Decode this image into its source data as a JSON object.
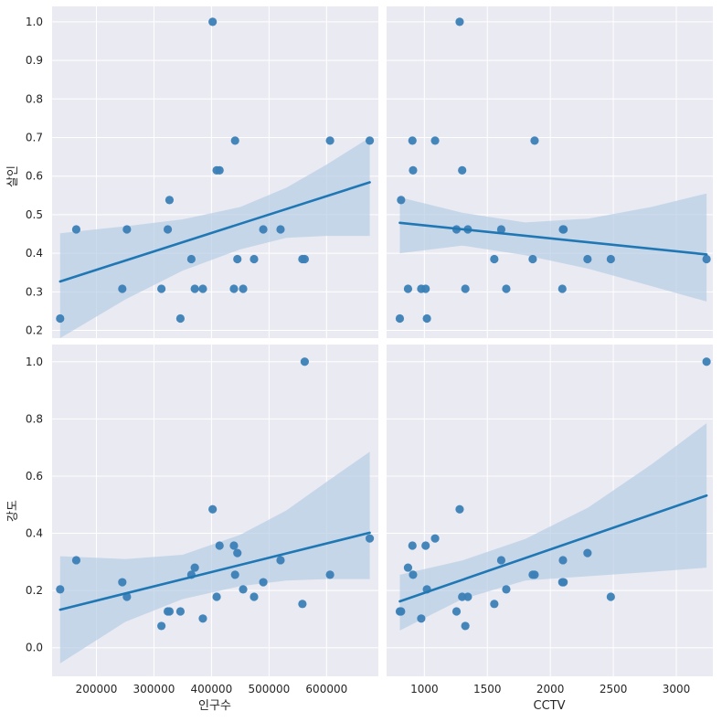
{
  "chart_data": {
    "type": "scatter",
    "layout": "2x2 pairplot with regression lines and confidence bands",
    "colors": {
      "background": "#eaeaf2",
      "grid": "#ffffff",
      "point": "#3b7fb6",
      "line": "#1f77b4",
      "band": "#b7cde5"
    },
    "x_variables": [
      {
        "label": "인구수",
        "lim": [
          123000,
          690000
        ],
        "ticks": [
          200000,
          300000,
          400000,
          500000,
          600000
        ]
      },
      {
        "label": "CCTV",
        "lim": [
          700,
          3290
        ],
        "ticks": [
          1000,
          1500,
          2000,
          2500,
          3000
        ]
      }
    ],
    "y_variables": [
      {
        "label": "살인",
        "lim": [
          0.18,
          1.04
        ],
        "ticks": [
          0.2,
          0.3,
          0.4,
          0.5,
          0.6,
          0.7,
          0.8,
          0.9,
          1.0
        ],
        "tick_labels": [
          "0.2",
          "0.3",
          "0.4",
          "0.5",
          "0.6",
          "0.7",
          "0.8",
          "0.9",
          "1.0"
        ]
      },
      {
        "label": "강도",
        "lim": [
          -0.1,
          1.06
        ],
        "ticks": [
          0.0,
          0.2,
          0.4,
          0.6,
          0.8,
          1.0
        ],
        "tick_labels": [
          "0.0",
          "0.2",
          "0.4",
          "0.6",
          "0.8",
          "1.0"
        ]
      }
    ],
    "x_tick_labels": [
      [
        "200000",
        "300000",
        "400000",
        "500000",
        "600000"
      ],
      [
        "1000",
        "1500",
        "2000",
        "2500",
        "3000"
      ]
    ],
    "panels": [
      {
        "row": 0,
        "col": 0,
        "points": [
          [
            137000,
            0.231
          ],
          [
            165000,
            0.462
          ],
          [
            245000,
            0.308
          ],
          [
            253000,
            0.462
          ],
          [
            313000,
            0.308
          ],
          [
            324000,
            0.462
          ],
          [
            327000,
            0.538
          ],
          [
            346000,
            0.231
          ],
          [
            365000,
            0.385
          ],
          [
            371000,
            0.308
          ],
          [
            385000,
            0.308
          ],
          [
            402000,
            1.0
          ],
          [
            409000,
            0.615
          ],
          [
            414000,
            0.615
          ],
          [
            439000,
            0.308
          ],
          [
            441000,
            0.692
          ],
          [
            445000,
            0.385
          ],
          [
            455000,
            0.308
          ],
          [
            474000,
            0.385
          ],
          [
            490000,
            0.462
          ],
          [
            520000,
            0.462
          ],
          [
            558000,
            0.385
          ],
          [
            562000,
            0.385
          ],
          [
            606000,
            0.692
          ],
          [
            675000,
            0.692
          ]
        ],
        "line": [
          [
            137000,
            0.327
          ],
          [
            675000,
            0.584
          ]
        ],
        "band_upper": [
          [
            137000,
            0.452
          ],
          [
            250000,
            0.47
          ],
          [
            350000,
            0.488
          ],
          [
            450000,
            0.52
          ],
          [
            530000,
            0.57
          ],
          [
            600000,
            0.63
          ],
          [
            675000,
            0.7
          ]
        ],
        "band_lower": [
          [
            137000,
            0.18
          ],
          [
            250000,
            0.28
          ],
          [
            350000,
            0.355
          ],
          [
            450000,
            0.41
          ],
          [
            530000,
            0.44
          ],
          [
            600000,
            0.445
          ],
          [
            675000,
            0.445
          ]
        ]
      },
      {
        "row": 0,
        "col": 1,
        "points": [
          [
            805,
            0.231
          ],
          [
            815,
            0.538
          ],
          [
            870,
            0.308
          ],
          [
            905,
            0.692
          ],
          [
            910,
            0.615
          ],
          [
            975,
            0.308
          ],
          [
            1010,
            0.308
          ],
          [
            1020,
            0.231
          ],
          [
            1085,
            0.692
          ],
          [
            1255,
            0.462
          ],
          [
            1280,
            1.0
          ],
          [
            1300,
            0.615
          ],
          [
            1325,
            0.308
          ],
          [
            1345,
            0.462
          ],
          [
            1555,
            0.385
          ],
          [
            1610,
            0.462
          ],
          [
            1650,
            0.308
          ],
          [
            1860,
            0.385
          ],
          [
            1875,
            0.692
          ],
          [
            2095,
            0.308
          ],
          [
            2100,
            0.462
          ],
          [
            2105,
            0.462
          ],
          [
            2295,
            0.385
          ],
          [
            2480,
            0.385
          ],
          [
            3240,
            0.385
          ]
        ],
        "line": [
          [
            805,
            0.479
          ],
          [
            3240,
            0.397
          ]
        ],
        "band_upper": [
          [
            805,
            0.545
          ],
          [
            1300,
            0.505
          ],
          [
            1800,
            0.48
          ],
          [
            2300,
            0.49
          ],
          [
            2800,
            0.52
          ],
          [
            3240,
            0.555
          ]
        ],
        "band_lower": [
          [
            805,
            0.4
          ],
          [
            1300,
            0.42
          ],
          [
            1800,
            0.395
          ],
          [
            2300,
            0.36
          ],
          [
            2800,
            0.315
          ],
          [
            3240,
            0.275
          ]
        ]
      },
      {
        "row": 1,
        "col": 0,
        "points": [
          [
            137000,
            0.204
          ],
          [
            165000,
            0.306
          ],
          [
            245000,
            0.229
          ],
          [
            253000,
            0.178
          ],
          [
            313000,
            0.076
          ],
          [
            324000,
            0.127
          ],
          [
            327000,
            0.127
          ],
          [
            346000,
            0.127
          ],
          [
            365000,
            0.255
          ],
          [
            371000,
            0.28
          ],
          [
            385000,
            0.102
          ],
          [
            402000,
            0.484
          ],
          [
            409000,
            0.178
          ],
          [
            414000,
            0.357
          ],
          [
            439000,
            0.357
          ],
          [
            441000,
            0.255
          ],
          [
            445000,
            0.331
          ],
          [
            455000,
            0.204
          ],
          [
            474000,
            0.178
          ],
          [
            490000,
            0.229
          ],
          [
            520000,
            0.306
          ],
          [
            558000,
            0.153
          ],
          [
            562000,
            1.0
          ],
          [
            606000,
            0.255
          ],
          [
            675000,
            0.382
          ]
        ],
        "line": [
          [
            137000,
            0.133
          ],
          [
            675000,
            0.402
          ]
        ],
        "band_upper": [
          [
            137000,
            0.32
          ],
          [
            250000,
            0.31
          ],
          [
            350000,
            0.325
          ],
          [
            450000,
            0.395
          ],
          [
            530000,
            0.48
          ],
          [
            600000,
            0.58
          ],
          [
            675000,
            0.685
          ]
        ],
        "band_lower": [
          [
            137000,
            -0.055
          ],
          [
            250000,
            0.09
          ],
          [
            350000,
            0.17
          ],
          [
            450000,
            0.215
          ],
          [
            530000,
            0.235
          ],
          [
            600000,
            0.24
          ],
          [
            675000,
            0.24
          ]
        ]
      },
      {
        "row": 1,
        "col": 1,
        "points": [
          [
            805,
            0.127
          ],
          [
            815,
            0.127
          ],
          [
            870,
            0.28
          ],
          [
            905,
            0.357
          ],
          [
            910,
            0.255
          ],
          [
            975,
            0.102
          ],
          [
            1010,
            0.357
          ],
          [
            1020,
            0.204
          ],
          [
            1085,
            0.382
          ],
          [
            1255,
            0.127
          ],
          [
            1280,
            0.484
          ],
          [
            1300,
            0.178
          ],
          [
            1325,
            0.076
          ],
          [
            1345,
            0.178
          ],
          [
            1555,
            0.153
          ],
          [
            1610,
            0.306
          ],
          [
            1650,
            0.204
          ],
          [
            1860,
            0.255
          ],
          [
            1875,
            0.255
          ],
          [
            2095,
            0.229
          ],
          [
            2100,
            0.306
          ],
          [
            2105,
            0.229
          ],
          [
            2295,
            0.331
          ],
          [
            2480,
            0.178
          ],
          [
            3240,
            1.0
          ]
        ],
        "line": [
          [
            805,
            0.162
          ],
          [
            3240,
            0.532
          ]
        ],
        "band_upper": [
          [
            805,
            0.255
          ],
          [
            1300,
            0.305
          ],
          [
            1800,
            0.38
          ],
          [
            2300,
            0.49
          ],
          [
            2800,
            0.64
          ],
          [
            3240,
            0.785
          ]
        ],
        "band_lower": [
          [
            805,
            0.06
          ],
          [
            1300,
            0.17
          ],
          [
            1800,
            0.235
          ],
          [
            2300,
            0.25
          ],
          [
            2800,
            0.265
          ],
          [
            3240,
            0.28
          ]
        ]
      }
    ]
  }
}
